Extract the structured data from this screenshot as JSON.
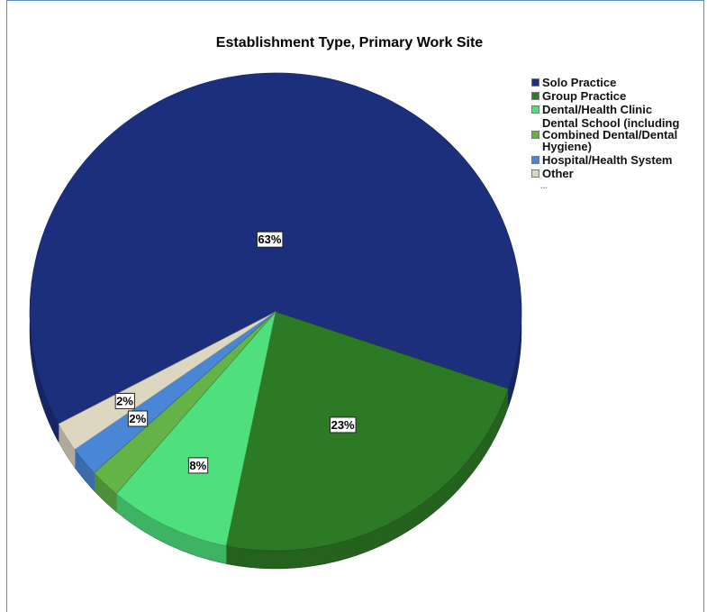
{
  "chart_data": {
    "type": "pie",
    "title": "Establishment Type, Primary Work Site",
    "categories": [
      "Solo Practice",
      "Group Practice",
      "Dental/Health Clinic",
      "Dental School (including Combined Dental/Dental Hygiene)",
      "Hospital/Health System",
      "Other"
    ],
    "values": [
      63,
      23,
      8,
      2,
      2,
      2
    ],
    "value_labels": [
      "63%",
      "23%",
      "8%",
      null,
      "2%",
      "2%"
    ],
    "colors": [
      "#1b2f7d",
      "#2d7a26",
      "#4fe07d",
      "#63b347",
      "#4a86d6",
      "#ddd6c0"
    ],
    "legend_more": "...",
    "legend": "right"
  }
}
